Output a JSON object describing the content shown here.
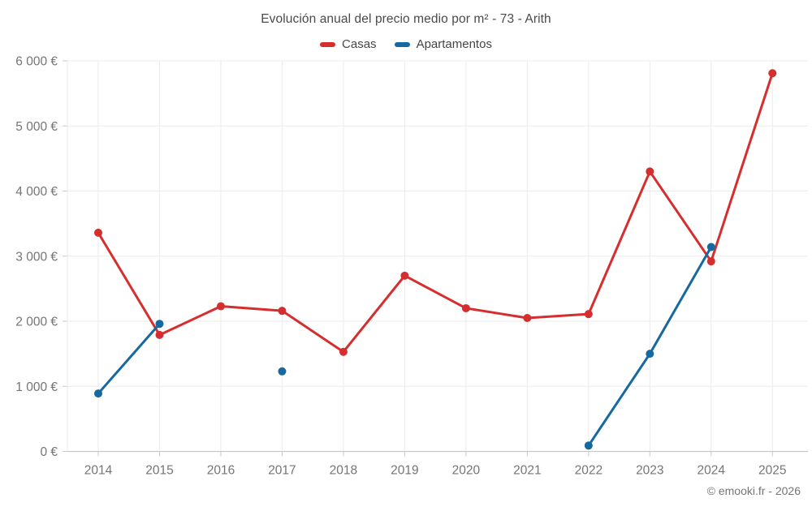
{
  "chart_data": {
    "type": "line",
    "title": "Evolución anual del precio medio por m² - 73 - Arith",
    "x": [
      2014,
      2015,
      2016,
      2017,
      2018,
      2019,
      2020,
      2021,
      2022,
      2023,
      2024,
      2025
    ],
    "series": [
      {
        "name": "Casas",
        "color": "#d62e2e",
        "values": [
          3360,
          1790,
          2230,
          2160,
          1530,
          2700,
          2200,
          2050,
          2110,
          4300,
          2920,
          5810
        ]
      },
      {
        "name": "Apartamentos",
        "color": "#16699f",
        "values": [
          890,
          1960,
          null,
          1230,
          null,
          null,
          null,
          null,
          90,
          1500,
          3140,
          null
        ]
      }
    ],
    "ylim": [
      0,
      6000
    ],
    "ytick_values": [
      0,
      1000,
      2000,
      3000,
      4000,
      5000,
      6000
    ],
    "ytick_labels": [
      "0 €",
      "1 000 €",
      "2 000 €",
      "3 000 €",
      "4 000 €",
      "5 000 €",
      "6 000 €"
    ],
    "grid": true,
    "legend_position": "top-center",
    "tick_label_color": "#757575",
    "grid_color": "#ebebeb",
    "axis_color": "#c9c9c9"
  },
  "footer": {
    "copyright": "© emooki.fr - 2026"
  }
}
